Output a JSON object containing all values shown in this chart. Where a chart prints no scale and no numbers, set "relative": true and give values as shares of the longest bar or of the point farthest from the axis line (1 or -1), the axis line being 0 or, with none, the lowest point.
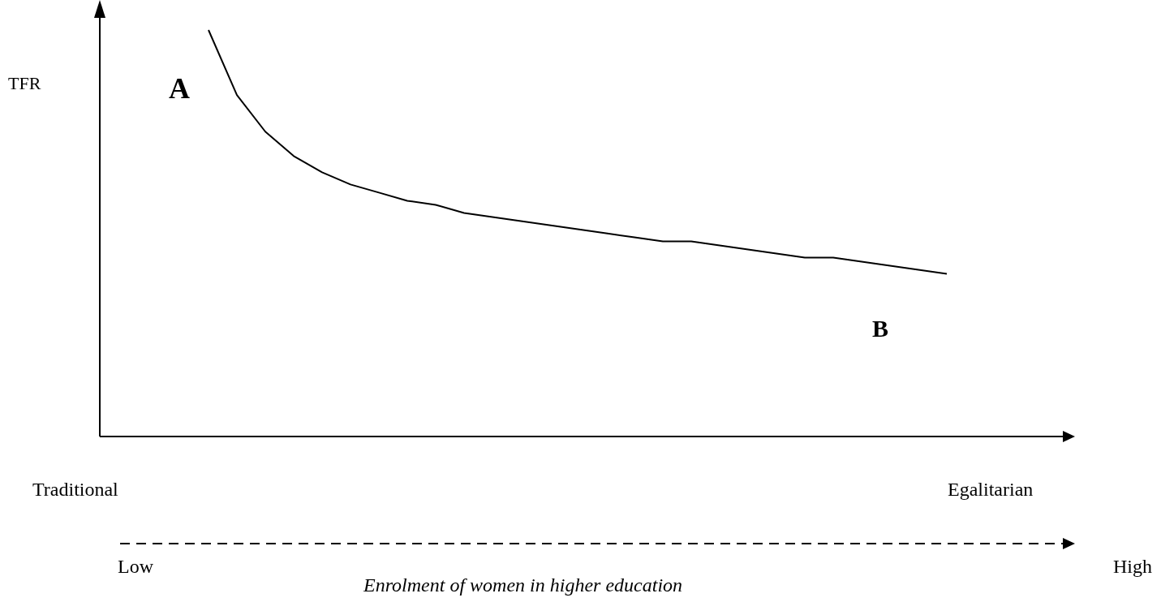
{
  "chart_data": {
    "type": "line",
    "relative": true,
    "marker": "none",
    "annotations": [
      "TFR",
      "A",
      "B",
      "Traditional",
      "Egalitarian",
      "Low",
      "High",
      "Enrolment of women in higher education"
    ],
    "categories": [
      null,
      null,
      null,
      null,
      null,
      null,
      null,
      null,
      null,
      null,
      null,
      null,
      null,
      null,
      null,
      null,
      null,
      null,
      null,
      null,
      null,
      null,
      null,
      null,
      null,
      null,
      null
    ],
    "series": [
      {
        "color": "#000000",
        "values": [
          1,
          0.84,
          0.75,
          0.69,
          0.65,
          0.62,
          0.6,
          0.58,
          0.57,
          0.55,
          0.54,
          0.53,
          0.52,
          0.51,
          0.5,
          0.49,
          0.48,
          0.48,
          0.47,
          0.46,
          0.45,
          0.44,
          0.44,
          0.43,
          0.42,
          0.41,
          0.4
        ]
      }
    ]
  }
}
